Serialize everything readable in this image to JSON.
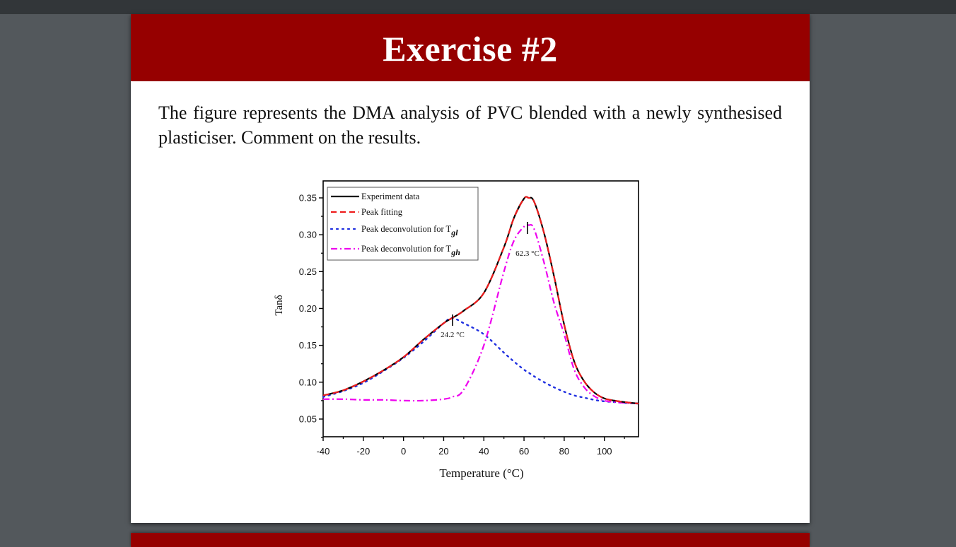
{
  "viewer": {
    "background": "#53585c",
    "topbar_color": "#323639"
  },
  "slide": {
    "header_color": "#960000",
    "title": "Exercise #2",
    "body_text": "The figure represents the DMA analysis of PVC blended with a newly synthesised plasticiser. Comment on the results."
  },
  "chart_data": {
    "type": "line",
    "title": "",
    "xlabel": "Temperature (°C)",
    "ylabel": "Tanδ",
    "xlim": [
      -40,
      117
    ],
    "ylim": [
      0.026,
      0.373
    ],
    "xticks": [
      -40,
      -20,
      0,
      20,
      40,
      60,
      80,
      100
    ],
    "xtick_labels": [
      "-40",
      "-20",
      "0",
      "20",
      "40",
      "60",
      "80",
      "100"
    ],
    "yticks": [
      0.05,
      0.1,
      0.15,
      0.2,
      0.25,
      0.3,
      0.35
    ],
    "ytick_labels": [
      "0.05",
      "0.10",
      "0.15",
      "0.20",
      "0.25",
      "0.30",
      "0.35"
    ],
    "grid": false,
    "legend_position": "upper-left",
    "x": [
      -40,
      -30,
      -20,
      -10,
      0,
      10,
      20,
      24.2,
      30,
      40,
      50,
      55,
      60,
      62.3,
      65,
      70,
      75,
      80,
      85,
      90,
      95,
      100,
      105,
      110,
      117
    ],
    "series": [
      {
        "name": "Experiment data",
        "color": "#000000",
        "style": "solid",
        "values": [
          0.082,
          0.089,
          0.101,
          0.116,
          0.134,
          0.158,
          0.18,
          0.187,
          0.197,
          0.221,
          0.283,
          0.323,
          0.349,
          0.35,
          0.345,
          0.302,
          0.243,
          0.178,
          0.128,
          0.101,
          0.086,
          0.078,
          0.075,
          0.073,
          0.071
        ]
      },
      {
        "name": "Peak fitting",
        "color": "#ee1c1c",
        "style": "dashed",
        "values": [
          0.082,
          0.089,
          0.101,
          0.116,
          0.134,
          0.158,
          0.18,
          0.187,
          0.197,
          0.221,
          0.283,
          0.323,
          0.349,
          0.35,
          0.345,
          0.302,
          0.243,
          0.178,
          0.128,
          0.101,
          0.086,
          0.078,
          0.075,
          0.073,
          0.071
        ]
      },
      {
        "name": "Peak deconvolution for Tgl",
        "legend_base": "Peak deconvolution for T",
        "legend_sub": "gl",
        "color": "#1f2fe0",
        "style": "dotted",
        "values": [
          0.08,
          0.088,
          0.099,
          0.115,
          0.133,
          0.155,
          0.18,
          0.187,
          0.18,
          0.165,
          0.14,
          0.128,
          0.117,
          0.113,
          0.108,
          0.1,
          0.093,
          0.087,
          0.082,
          0.079,
          0.076,
          0.074,
          0.073,
          0.072,
          0.071
        ]
      },
      {
        "name": "Peak deconvolution for Tgh",
        "legend_base": "Peak deconvolution for T",
        "legend_sub": "gh",
        "color": "#ee00ee",
        "style": "dash-dot",
        "values": [
          0.077,
          0.077,
          0.076,
          0.076,
          0.075,
          0.075,
          0.077,
          0.08,
          0.09,
          0.15,
          0.25,
          0.292,
          0.311,
          0.313,
          0.308,
          0.262,
          0.207,
          0.165,
          0.117,
          0.093,
          0.081,
          0.075,
          0.073,
          0.072,
          0.071
        ]
      }
    ],
    "annotations": [
      {
        "text": "24.2 °C",
        "x": 24.2,
        "y": 0.187,
        "label": "Tgl peak"
      },
      {
        "text": "62.3 °C",
        "x": 62.3,
        "y": 0.313,
        "label": "Tgh peak"
      }
    ]
  }
}
